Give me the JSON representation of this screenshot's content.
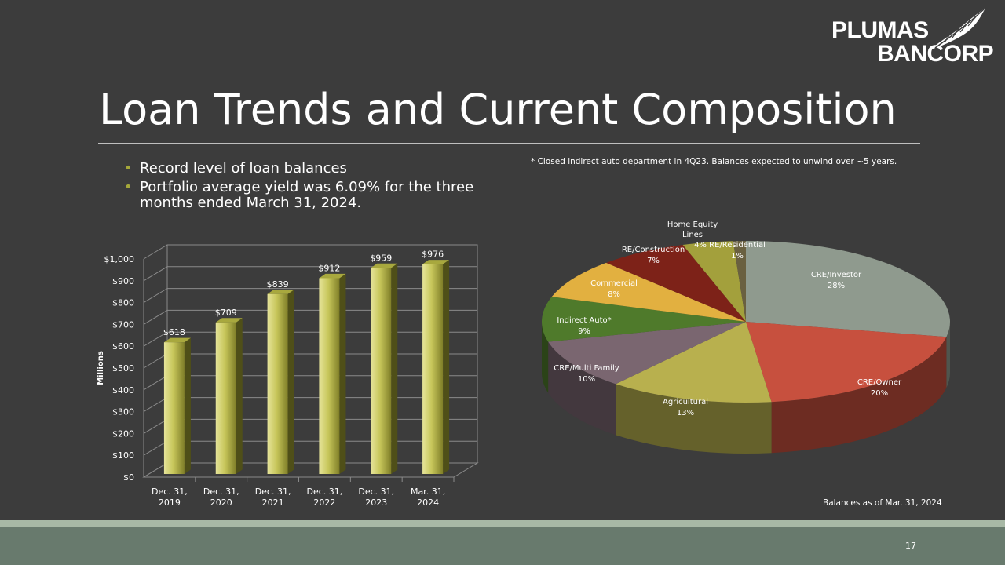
{
  "title": "Loan Trends and Current Composition",
  "logo": {
    "line1": "PLUMAS",
    "line2": "BANCORP"
  },
  "bullets": [
    "Record level of loan balances",
    "Portfolio average yield was 6.09% for the three months ended March 31, 2024."
  ],
  "footnote": "* Closed indirect auto department  in 4Q23. Balances expected to unwind over ~5 years.",
  "balances_note": "Balances as of  Mar. 31, 2024",
  "page_number": "17",
  "colors": {
    "background": "#3c3c3c",
    "bar": "#c7c65a",
    "footer_band": "#687a6d"
  },
  "chart_data": [
    {
      "type": "bar",
      "title": "",
      "ylabel": "Millions",
      "xlabel": "",
      "categories": [
        "Dec. 31, 2019",
        "Dec. 31, 2020",
        "Dec. 31, 2021",
        "Dec. 31, 2022",
        "Dec. 31, 2023",
        "Mar. 31, 2024"
      ],
      "values": [
        618,
        709,
        839,
        912,
        959,
        976
      ],
      "value_labels": [
        "$618",
        "$709",
        "$839",
        "$912",
        "$959",
        "$976"
      ],
      "ylim": [
        0,
        1000
      ],
      "yticks": [
        "$0",
        "$100",
        "$200",
        "$300",
        "$400",
        "$500",
        "$600",
        "$700",
        "$800",
        "$900",
        "$1,000"
      ],
      "grid": true,
      "legend": "none"
    },
    {
      "type": "pie",
      "title": "",
      "slices": [
        {
          "label": "CRE/Investor",
          "value": 28,
          "pct": "28%",
          "color": "#8f9a8e"
        },
        {
          "label": "CRE/Owner",
          "value": 20,
          "pct": "20%",
          "color": "#c7503e"
        },
        {
          "label": "Agricultural",
          "value": 13,
          "pct": "13%",
          "color": "#b8b04e"
        },
        {
          "label": "CRE/Multi Family",
          "value": 10,
          "pct": "10%",
          "color": "#7a6670"
        },
        {
          "label": "Indirect Auto*",
          "value": 9,
          "pct": "9%",
          "color": "#4f7a2b"
        },
        {
          "label": "Commercial",
          "value": 8,
          "pct": "8%",
          "color": "#e2b040"
        },
        {
          "label": "RE/Construction",
          "value": 7,
          "pct": "7%",
          "color": "#7d2218"
        },
        {
          "label": "Home Equity Lines",
          "value": 4,
          "pct": "4%",
          "color": "#a3a03c"
        },
        {
          "label": "RE/Residential",
          "value": 1,
          "pct": "1%",
          "color": "#6a6040"
        }
      ],
      "legend": "none"
    }
  ]
}
